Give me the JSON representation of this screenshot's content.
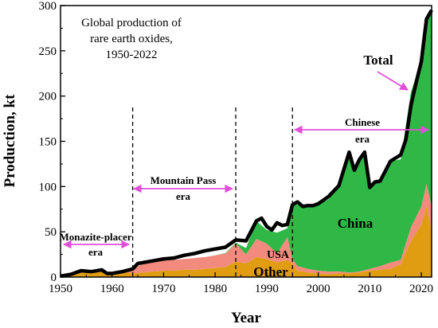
{
  "chart_data": {
    "type": "area",
    "title": "Global production of rare earth oxides, 1950-2022",
    "title_lines": [
      "Global production of",
      "rare earth oxides,",
      "1950-2022"
    ],
    "xlabel": "Year",
    "ylabel": "Production, kt",
    "xlim": [
      1950,
      2022
    ],
    "ylim": [
      0,
      300
    ],
    "x_ticks": [
      1950,
      1960,
      1970,
      1980,
      1990,
      2000,
      2010,
      2020
    ],
    "y_ticks": [
      0,
      50,
      100,
      150,
      200,
      250,
      300
    ],
    "grid": false,
    "stacked": true,
    "colors": {
      "Other": "#e09d12",
      "USA": "#f28a7d",
      "China": "#2fb845",
      "Total": "#000000"
    },
    "series": [
      {
        "name": "Other",
        "x": [
          1950,
          1952,
          1954,
          1956,
          1958,
          1959,
          1960,
          1962,
          1964,
          1966,
          1968,
          1970,
          1972,
          1974,
          1976,
          1978,
          1980,
          1982,
          1984,
          1986,
          1988,
          1990,
          1992,
          1994,
          1995,
          1996,
          1998,
          2000,
          2002,
          2004,
          2006,
          2008,
          2010,
          2012,
          2014,
          2016,
          2018,
          2020,
          2021,
          2022
        ],
        "values": [
          1,
          3,
          7,
          6,
          8,
          4,
          4,
          6,
          4,
          5,
          6,
          7,
          7,
          8,
          8,
          9,
          10,
          11,
          17,
          15,
          22,
          20,
          16,
          19,
          15,
          7,
          5,
          4,
          3,
          4,
          4,
          5,
          7,
          8,
          9,
          14,
          40,
          58,
          78,
          50
        ]
      },
      {
        "name": "USA",
        "x": [
          1950,
          1962,
          1964,
          1966,
          1968,
          1970,
          1972,
          1974,
          1976,
          1978,
          1980,
          1982,
          1984,
          1986,
          1988,
          1990,
          1992,
          1994,
          1995,
          1996,
          1998,
          2000,
          2002,
          2004,
          2006,
          2008,
          2010,
          2012,
          2014,
          2016,
          2018,
          2020,
          2021,
          2022
        ],
        "values": [
          0,
          0,
          5,
          10,
          10,
          11,
          12,
          12,
          13,
          13,
          14,
          15,
          20,
          10,
          20,
          17,
          10,
          25,
          5,
          5,
          4,
          3,
          3,
          2,
          1,
          1,
          2,
          4,
          7,
          5,
          15,
          20,
          25,
          28
        ]
      },
      {
        "name": "China",
        "x": [
          1950,
          1980,
          1984,
          1986,
          1988,
          1990,
          1992,
          1994,
          1995,
          1996,
          1998,
          2000,
          2002,
          2004,
          2006,
          2007,
          2008,
          2009,
          2010,
          2011,
          2012,
          2014,
          2016,
          2018,
          2020,
          2021,
          2022
        ],
        "values": [
          0,
          0,
          1,
          7,
          20,
          15,
          23,
          10,
          60,
          68,
          70,
          73,
          80,
          95,
          133,
          116,
          127,
          131,
          90,
          95,
          94,
          112,
          111,
          150,
          160,
          178,
          217
        ]
      }
    ],
    "total": {
      "name": "Total",
      "x": [
        1950,
        1952,
        1954,
        1956,
        1958,
        1959,
        1960,
        1962,
        1964,
        1965,
        1966,
        1968,
        1970,
        1972,
        1974,
        1976,
        1978,
        1980,
        1982,
        1984,
        1986,
        1988,
        1989,
        1990,
        1991,
        1992,
        1993,
        1994,
        1995,
        1996,
        1997,
        1998,
        1999,
        2000,
        2002,
        2004,
        2006,
        2007,
        2008,
        2009,
        2010,
        2011,
        2012,
        2014,
        2016,
        2017,
        2018,
        2019,
        2020,
        2021,
        2022
      ],
      "values": [
        1,
        3,
        7,
        6,
        8,
        4,
        4,
        6,
        9,
        15,
        16,
        18,
        20,
        21,
        24,
        26,
        29,
        31,
        33,
        41,
        40,
        62,
        65,
        56,
        52,
        60,
        57,
        58,
        80,
        83,
        78,
        79,
        79,
        81,
        89,
        101,
        138,
        118,
        130,
        138,
        99,
        105,
        106,
        128,
        135,
        152,
        190,
        215,
        238,
        285,
        295
      ]
    },
    "annotations": [
      {
        "text": "Monazite-placer era",
        "lines": [
          "Monazite-placer",
          "era"
        ],
        "span": [
          1950,
          1964
        ]
      },
      {
        "text": "Mountain Pass era",
        "lines": [
          "Mountain Pass",
          "era"
        ],
        "span": [
          1964,
          1984
        ]
      },
      {
        "text": "Chinese era",
        "lines": [
          "Chinese",
          "era"
        ],
        "span": [
          1995,
          2022
        ]
      },
      {
        "text": "Total",
        "lines": [
          "Total"
        ]
      }
    ],
    "era_boundaries": [
      1964,
      1984,
      1995
    ],
    "area_labels": {
      "china": "China",
      "usa": "USA",
      "other": "Other"
    }
  }
}
